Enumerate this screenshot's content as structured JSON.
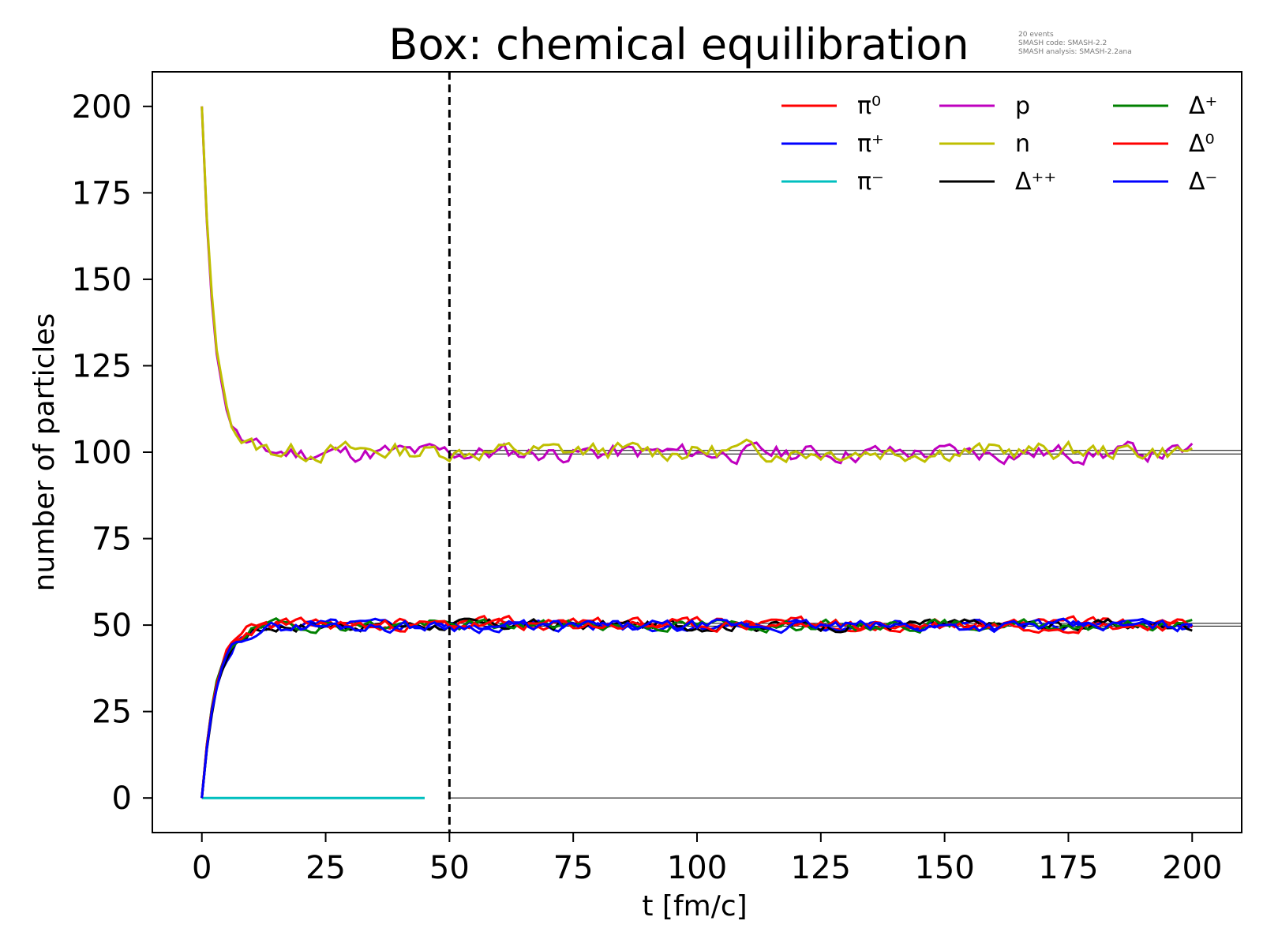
{
  "chart_data": {
    "type": "line",
    "title": "Box: chemical equilibration",
    "annotation": [
      "20 events",
      "SMASH code:      SMASH-2.2",
      "SMASH analysis: SMASH-2.2ana"
    ],
    "xlabel": "t [fm/c]",
    "ylabel": "number of particles",
    "xlim": [
      -10,
      210
    ],
    "ylim": [
      -10,
      210
    ],
    "xticks": [
      0,
      25,
      50,
      75,
      100,
      125,
      150,
      175,
      200
    ],
    "yticks": [
      0,
      25,
      50,
      75,
      100,
      125,
      150,
      175,
      200
    ],
    "x_step": 1,
    "equilibration_marker_x": 50,
    "legend_position": "top-right",
    "reference_lines": [
      {
        "y": 100.5,
        "color": "#000000"
      },
      {
        "y": 99.5,
        "color": "#000000"
      },
      {
        "y": 50.5,
        "color": "#000000"
      },
      {
        "y": 49.7,
        "color": "#000000"
      },
      {
        "y": 0,
        "color": "#000000"
      }
    ],
    "series": [
      {
        "name": "π⁰",
        "color": "#ff0000",
        "start": 0,
        "target": 50.5,
        "noise": 1.2,
        "tau": 2.8,
        "seed": 3
      },
      {
        "name": "π⁺",
        "color": "#0000ff",
        "start": 0,
        "target": 49.8,
        "noise": 1.2,
        "tau": 3.0,
        "seed": 5
      },
      {
        "name": "π⁻",
        "color": "#00bfbf",
        "start": 0,
        "target": 0,
        "noise": 0,
        "tau": 1,
        "seed": 7,
        "x_end": 45
      },
      {
        "name": "p",
        "color": "#bf00bf",
        "start": 200,
        "target": 99.8,
        "noise": 2.0,
        "tau": 2.5,
        "seed": 11
      },
      {
        "name": "n",
        "color": "#bfbf00",
        "start": 200,
        "target": 100.3,
        "noise": 2.0,
        "tau": 2.5,
        "seed": 13
      },
      {
        "name": "Δ⁺⁺",
        "color": "#000000",
        "start": 0,
        "target": 50.0,
        "noise": 1.2,
        "tau": 3.0,
        "seed": 17
      },
      {
        "name": "Δ⁺",
        "color": "#008000",
        "start": 0,
        "target": 50.0,
        "noise": 1.2,
        "tau": 2.8,
        "seed": 19
      },
      {
        "name": "Δ⁰",
        "color": "#ff0000",
        "start": 0,
        "target": 50.0,
        "noise": 1.2,
        "tau": 2.9,
        "seed": 23
      },
      {
        "name": "Δ⁻",
        "color": "#0000ff",
        "start": 0,
        "target": 49.7,
        "noise": 1.2,
        "tau": 3.0,
        "seed": 29
      }
    ]
  }
}
